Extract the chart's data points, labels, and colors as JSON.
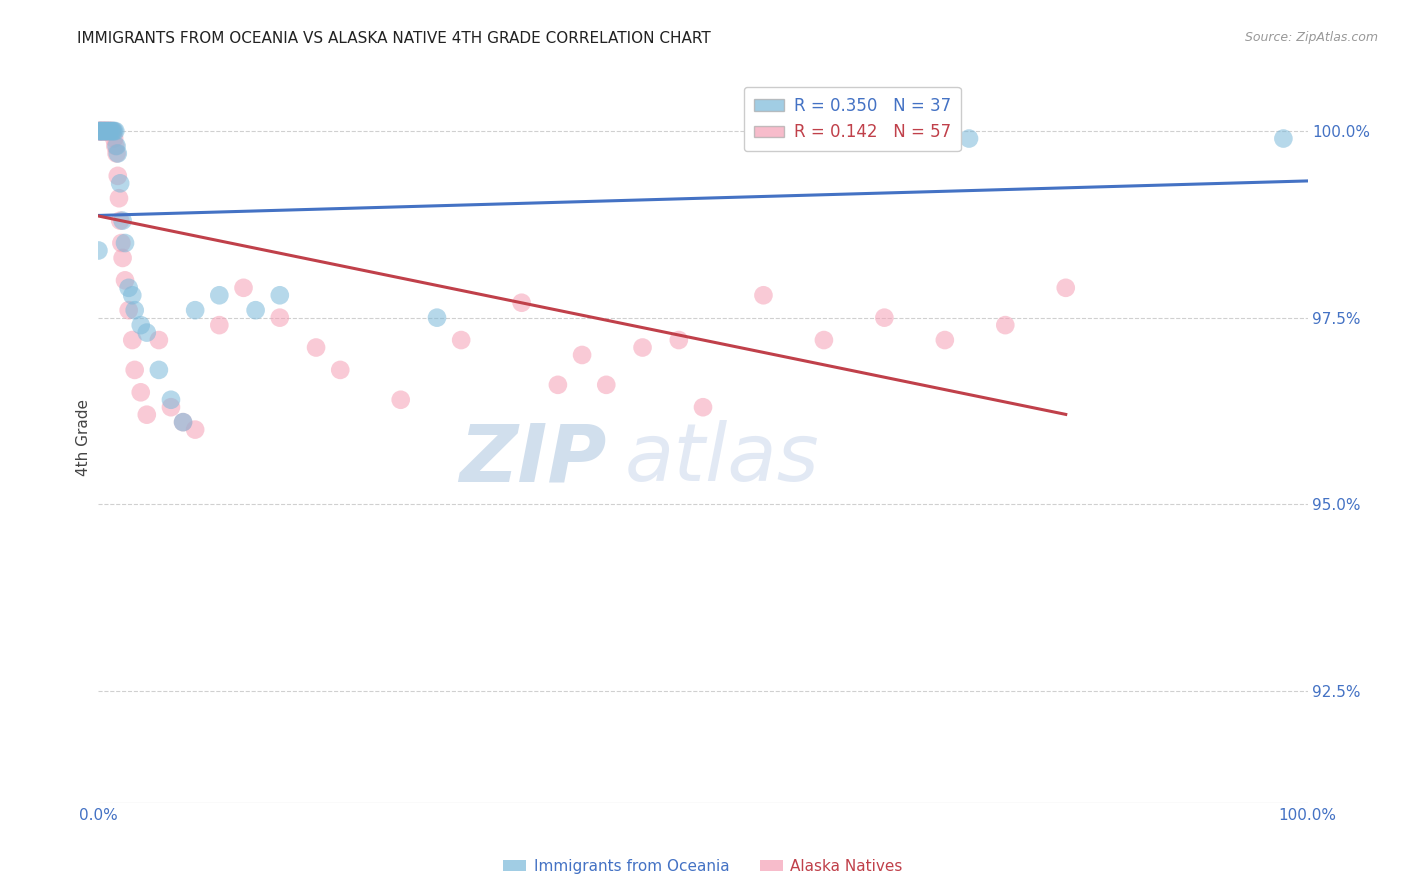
{
  "title": "IMMIGRANTS FROM OCEANIA VS ALASKA NATIVE 4TH GRADE CORRELATION CHART",
  "source": "Source: ZipAtlas.com",
  "ylabel": "4th Grade",
  "xlim": [
    0.0,
    1.0
  ],
  "ylim": [
    0.91,
    1.008
  ],
  "yticks": [
    0.925,
    0.95,
    0.975,
    1.0
  ],
  "ytick_labels": [
    "92.5%",
    "95.0%",
    "97.5%",
    "100.0%"
  ],
  "xticks": [
    0.0,
    0.2,
    0.4,
    0.6,
    0.8,
    1.0
  ],
  "xtick_labels": [
    "0.0%",
    "",
    "",
    "",
    "",
    "100.0%"
  ],
  "blue_R": 0.35,
  "blue_N": 37,
  "pink_R": 0.142,
  "pink_N": 57,
  "blue_color": "#7ab8d9",
  "pink_color": "#f5a0b5",
  "blue_line_color": "#4472c4",
  "pink_line_color": "#c0404a",
  "legend_label_blue": "Immigrants from Oceania",
  "legend_label_pink": "Alaska Natives",
  "blue_points_x": [
    0.001,
    0.001,
    0.002,
    0.003,
    0.004,
    0.005,
    0.006,
    0.007,
    0.008,
    0.009,
    0.01,
    0.011,
    0.012,
    0.013,
    0.014,
    0.015,
    0.016,
    0.018,
    0.02,
    0.022,
    0.025,
    0.028,
    0.03,
    0.035,
    0.04,
    0.05,
    0.06,
    0.07,
    0.08,
    0.1,
    0.13,
    0.15,
    0.28,
    0.55,
    0.72,
    0.98,
    0.0
  ],
  "blue_points_y": [
    1.0,
    1.0,
    1.0,
    1.0,
    1.0,
    1.0,
    1.0,
    1.0,
    1.0,
    1.0,
    1.0,
    1.0,
    1.0,
    1.0,
    1.0,
    0.998,
    0.997,
    0.993,
    0.988,
    0.985,
    0.979,
    0.978,
    0.976,
    0.974,
    0.973,
    0.968,
    0.964,
    0.961,
    0.976,
    0.978,
    0.976,
    0.978,
    0.975,
    0.999,
    0.999,
    0.999,
    0.984
  ],
  "pink_points_x": [
    0.0,
    0.001,
    0.001,
    0.002,
    0.002,
    0.003,
    0.004,
    0.004,
    0.005,
    0.005,
    0.006,
    0.007,
    0.007,
    0.008,
    0.009,
    0.009,
    0.01,
    0.011,
    0.012,
    0.013,
    0.014,
    0.015,
    0.016,
    0.017,
    0.018,
    0.019,
    0.02,
    0.022,
    0.025,
    0.028,
    0.03,
    0.035,
    0.04,
    0.05,
    0.06,
    0.07,
    0.08,
    0.1,
    0.12,
    0.15,
    0.18,
    0.2,
    0.25,
    0.3,
    0.35,
    0.38,
    0.4,
    0.42,
    0.45,
    0.48,
    0.5,
    0.55,
    0.6,
    0.65,
    0.7,
    0.75,
    0.8
  ],
  "pink_points_y": [
    1.0,
    1.0,
    1.0,
    1.0,
    1.0,
    1.0,
    1.0,
    1.0,
    1.0,
    1.0,
    1.0,
    1.0,
    1.0,
    1.0,
    1.0,
    1.0,
    1.0,
    1.0,
    1.0,
    0.999,
    0.998,
    0.997,
    0.994,
    0.991,
    0.988,
    0.985,
    0.983,
    0.98,
    0.976,
    0.972,
    0.968,
    0.965,
    0.962,
    0.972,
    0.963,
    0.961,
    0.96,
    0.974,
    0.979,
    0.975,
    0.971,
    0.968,
    0.964,
    0.972,
    0.977,
    0.966,
    0.97,
    0.966,
    0.971,
    0.972,
    0.963,
    0.978,
    0.972,
    0.975,
    0.972,
    0.974,
    0.979
  ],
  "watermark_zip_color": "#b0c8e8",
  "watermark_atlas_color": "#c8d8ee",
  "grid_color": "#d0d0d0",
  "tick_color": "#4472c4"
}
